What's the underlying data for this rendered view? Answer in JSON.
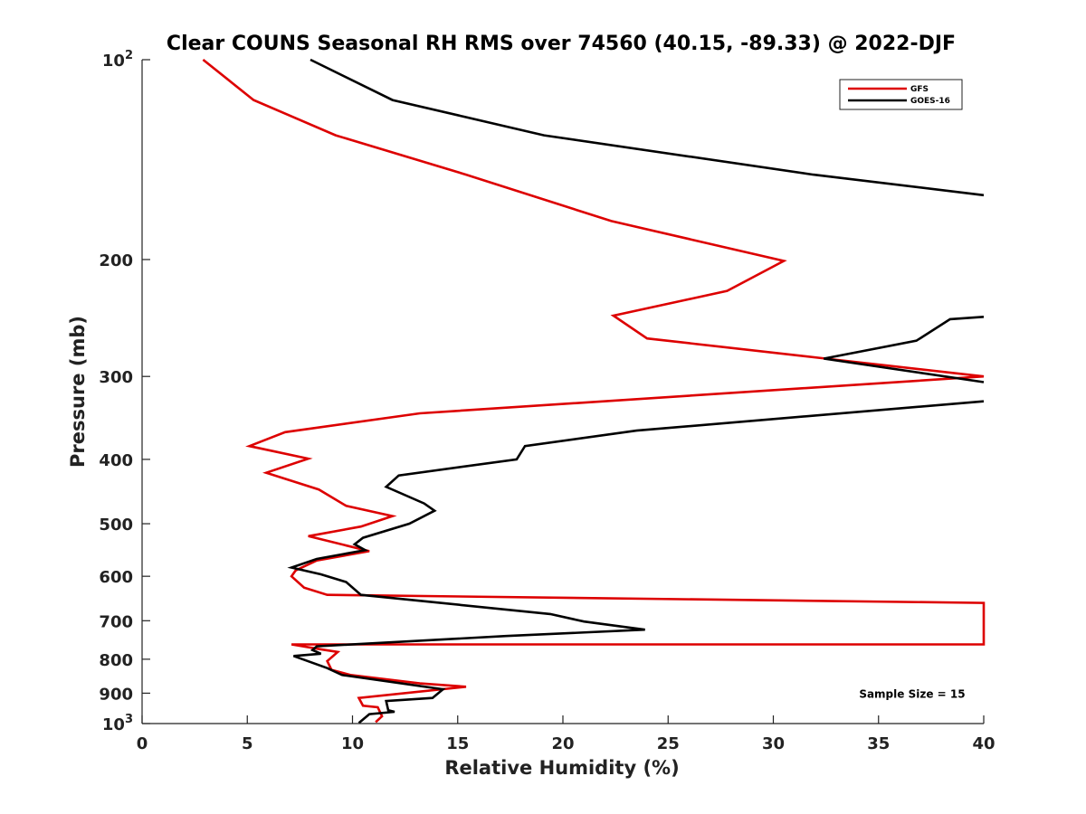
{
  "chart_data": {
    "type": "line",
    "title": "Clear COUNS Seasonal RH RMS over 74560 (40.15, -89.33) @ 2022-DJF",
    "xlabel": "Relative Humidity (%)",
    "ylabel": "Pressure (mb)",
    "xlim": [
      0,
      40
    ],
    "ylim": [
      100,
      1000
    ],
    "yscale": "log",
    "y_reversed": true,
    "grid": false,
    "legend_position": "top-right",
    "x_ticks": [
      0,
      5,
      10,
      15,
      20,
      25,
      30,
      35,
      40
    ],
    "x_tick_labels": [
      "0",
      "5",
      "10",
      "15",
      "20",
      "25",
      "30",
      "35",
      "40"
    ],
    "y_ticks": [
      100,
      200,
      300,
      400,
      500,
      600,
      700,
      800,
      900,
      1000
    ],
    "y_tick_labels": [
      {
        "base": "10",
        "sup": "2"
      },
      {
        "base": "200",
        "sup": ""
      },
      {
        "base": "300",
        "sup": ""
      },
      {
        "base": "400",
        "sup": ""
      },
      {
        "base": "500",
        "sup": ""
      },
      {
        "base": "600",
        "sup": ""
      },
      {
        "base": "700",
        "sup": ""
      },
      {
        "base": "800",
        "sup": ""
      },
      {
        "base": "900",
        "sup": ""
      },
      {
        "base": "10",
        "sup": "3"
      }
    ],
    "series": [
      {
        "name": "GFS",
        "color": "#dd0000",
        "points": [
          [
            2.9,
            100
          ],
          [
            5.3,
            115
          ],
          [
            9.2,
            130
          ],
          [
            15.4,
            149
          ],
          [
            22.3,
            175
          ],
          [
            30.5,
            201
          ],
          [
            27.8,
            223
          ],
          [
            22.4,
            243
          ],
          [
            24.0,
            263
          ],
          [
            32.5,
            282
          ],
          [
            40.0,
            300
          ],
          [
            13.2,
            341
          ],
          [
            6.8,
            364
          ],
          [
            5.1,
            382
          ],
          [
            7.9,
            399
          ],
          [
            5.9,
            419
          ],
          [
            8.4,
            444
          ],
          [
            9.7,
            470
          ],
          [
            11.9,
            487
          ],
          [
            10.4,
            505
          ],
          [
            7.9,
            522
          ],
          [
            10.8,
            550
          ],
          [
            8.3,
            568
          ],
          [
            7.3,
            588
          ],
          [
            7.1,
            600
          ],
          [
            7.7,
            624
          ],
          [
            8.8,
            640
          ],
          [
            40.0,
            658
          ],
          [
            40.0,
            760
          ],
          [
            7.1,
            760
          ],
          [
            8.6,
            774
          ],
          [
            9.3,
            780
          ],
          [
            8.8,
            805
          ],
          [
            9.0,
            830
          ],
          [
            9.9,
            845
          ],
          [
            13.2,
            870
          ],
          [
            15.4,
            880
          ],
          [
            10.3,
            915
          ],
          [
            10.5,
            940
          ],
          [
            11.2,
            945
          ],
          [
            11.4,
            975
          ],
          [
            11.1,
            995
          ]
        ]
      },
      {
        "name": "GOES-16",
        "color": "#000000",
        "points": [
          [
            8.0,
            100
          ],
          [
            11.9,
            115
          ],
          [
            19.1,
            130
          ],
          [
            31.9,
            149
          ],
          [
            40.0,
            160
          ],
          [
            null,
            null
          ],
          [
            40.0,
            244
          ],
          [
            38.4,
            246
          ],
          [
            36.8,
            265
          ],
          [
            32.4,
            282
          ],
          [
            40.0,
            306
          ],
          [
            null,
            null
          ],
          [
            40.0,
            327
          ],
          [
            23.5,
            362
          ],
          [
            18.2,
            382
          ],
          [
            17.8,
            400
          ],
          [
            12.2,
            423
          ],
          [
            11.6,
            440
          ],
          [
            13.4,
            466
          ],
          [
            13.9,
            478
          ],
          [
            12.7,
            500
          ],
          [
            10.5,
            525
          ],
          [
            10.1,
            537
          ],
          [
            10.6,
            548
          ],
          [
            8.3,
            565
          ],
          [
            7.1,
            582
          ],
          [
            8.5,
            596
          ],
          [
            9.7,
            612
          ],
          [
            10.4,
            640
          ],
          [
            19.4,
            684
          ],
          [
            21.0,
            702
          ],
          [
            23.9,
            722
          ],
          [
            17.3,
            738
          ],
          [
            8.3,
            765
          ],
          [
            8.1,
            775
          ],
          [
            8.5,
            785
          ],
          [
            7.2,
            791
          ],
          [
            8.8,
            825
          ],
          [
            9.5,
            845
          ],
          [
            14.3,
            888
          ],
          [
            13.8,
            915
          ],
          [
            11.6,
            925
          ],
          [
            11.7,
            955
          ],
          [
            12.0,
            960
          ],
          [
            10.8,
            968
          ],
          [
            10.3,
            998
          ]
        ]
      }
    ],
    "annotations": [
      {
        "text": "Sample Size = 15",
        "x": 36.6,
        "y": 900
      }
    ]
  }
}
